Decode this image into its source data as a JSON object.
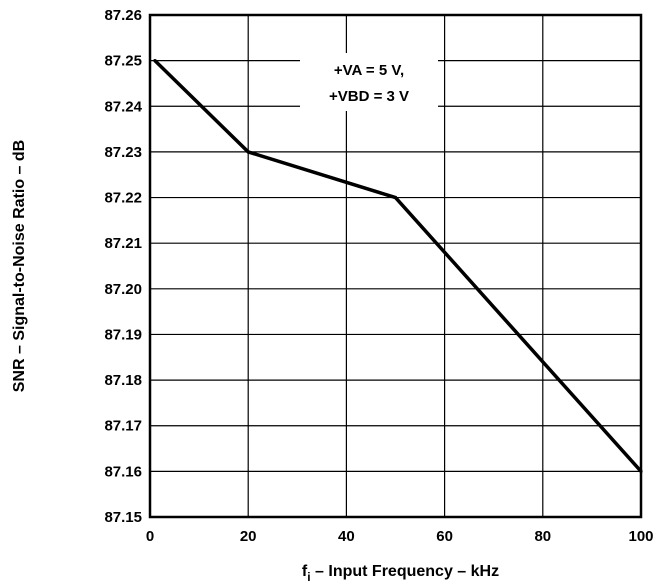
{
  "chart_data": {
    "type": "line",
    "title": "",
    "xlabel_main": "f",
    "xlabel_sub": "i",
    "xlabel_rest": " – Input Frequency – kHz",
    "ylabel": "SNR – Signal-to-Noise Ratio – dB",
    "xlim": [
      0,
      100
    ],
    "ylim": [
      87.15,
      87.26
    ],
    "x_ticks": [
      "0",
      "20",
      "40",
      "60",
      "80",
      "100"
    ],
    "x_tick_values": [
      0,
      20,
      40,
      60,
      80,
      100
    ],
    "y_ticks": [
      "87.15",
      "87.16",
      "87.17",
      "87.18",
      "87.19",
      "87.20",
      "87.21",
      "87.22",
      "87.23",
      "87.24",
      "87.25",
      "87.26"
    ],
    "y_tick_values": [
      87.15,
      87.16,
      87.17,
      87.18,
      87.19,
      87.2,
      87.21,
      87.22,
      87.23,
      87.24,
      87.25,
      87.26
    ],
    "grid": true,
    "series": [
      {
        "x": [
          1,
          20,
          50,
          100
        ],
        "y": [
          87.25,
          87.23,
          87.22,
          87.16
        ]
      }
    ],
    "annotation": [
      "+VA = 5 V,",
      "+VBD = 3 V"
    ]
  }
}
